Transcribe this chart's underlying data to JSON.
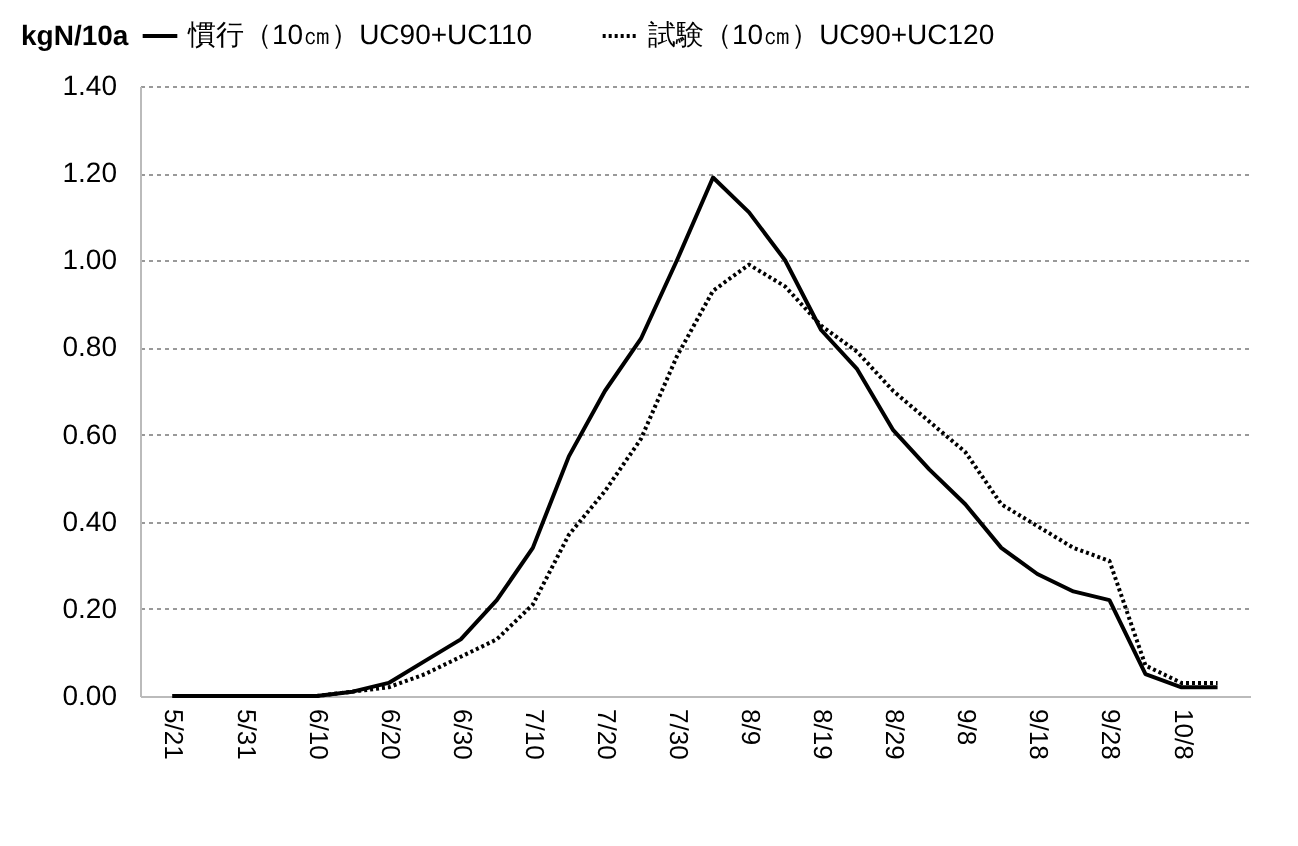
{
  "chart_data": {
    "type": "line",
    "ylabel": "kgN/10a",
    "categories": [
      "5/21",
      null,
      "5/31",
      null,
      "6/10",
      null,
      "6/20",
      null,
      "6/30",
      null,
      "7/10",
      null,
      "7/20",
      null,
      "7/30",
      null,
      "8/9",
      null,
      "8/19",
      null,
      "8/29",
      null,
      "9/8",
      null,
      "9/18",
      null,
      "9/28",
      null,
      "10/8",
      null
    ],
    "series": [
      {
        "name": "慣行（10㎝）UC90+UC110",
        "color": "#000000",
        "line_style": "solid",
        "values": [
          0,
          0,
          0,
          0,
          0,
          0.01,
          0.03,
          0.08,
          0.13,
          0.22,
          0.34,
          0.55,
          0.7,
          0.82,
          1.0,
          1.19,
          1.11,
          1.0,
          0.84,
          0.75,
          0.61,
          0.52,
          0.44,
          0.34,
          0.28,
          0.24,
          0.22,
          0.05,
          0.02,
          0.02
        ]
      },
      {
        "name": "試験（10㎝）UC90+UC120",
        "color": "#000000",
        "line_style": "dotted",
        "values": [
          0,
          0,
          0,
          0,
          0,
          0.01,
          0.02,
          0.05,
          0.09,
          0.13,
          0.21,
          0.37,
          0.47,
          0.59,
          0.78,
          0.93,
          0.99,
          0.94,
          0.85,
          0.79,
          0.7,
          0.63,
          0.56,
          0.44,
          0.39,
          0.34,
          0.31,
          0.07,
          0.03,
          0.03
        ]
      }
    ],
    "ylim": [
      0,
      1.4
    ],
    "yticks": [
      {
        "value": 0,
        "label": "0.00"
      },
      {
        "value": 0.2,
        "label": "0.20"
      },
      {
        "value": 0.4,
        "label": "0.40"
      },
      {
        "value": 0.6,
        "label": "0.60"
      },
      {
        "value": 0.8,
        "label": "0.80"
      },
      {
        "value": 1,
        "label": "1.00"
      },
      {
        "value": 1.2,
        "label": "1.20"
      },
      {
        "value": 1.4,
        "label": "1.40"
      }
    ],
    "grid": "y",
    "legend": "top",
    "marker": "none"
  }
}
